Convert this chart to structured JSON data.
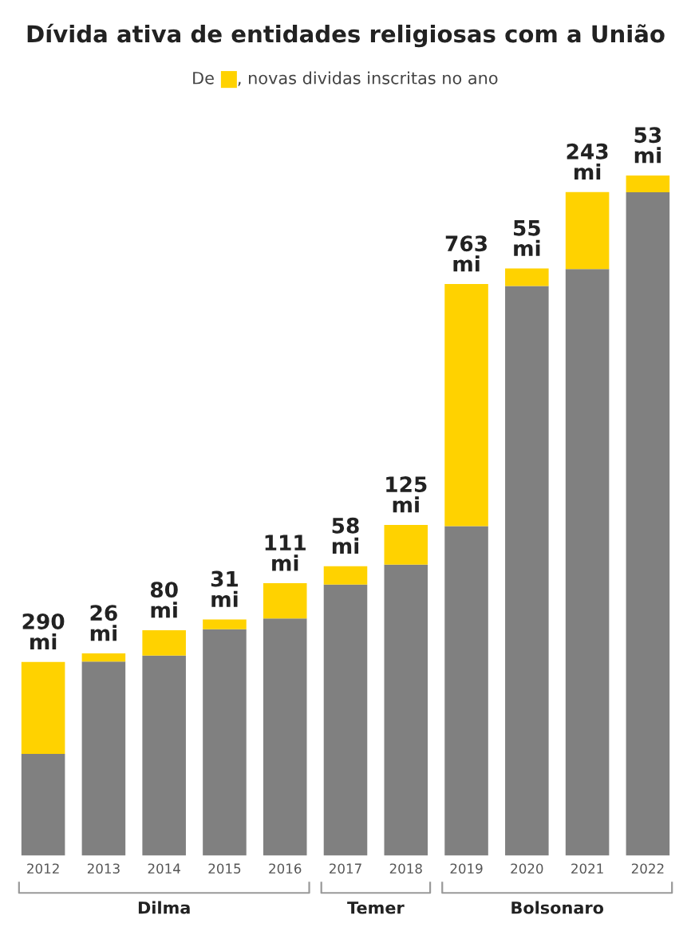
{
  "chart_data": {
    "type": "bar",
    "title": "Dívida ativa de entidades religiosas com a União",
    "subtitle": "De",
    "categories": [
      "2012",
      "2013",
      "2014",
      "2015",
      "2016",
      "2017",
      "2018",
      "2019",
      "2020",
      "2021",
      "2022"
    ],
    "stacked": true,
    "legend": "top",
    "series": [
      {
        "color": "#808080",
        "values": [
          320,
          611,
          630,
          713,
          747,
          854,
          917,
          1038,
          1795,
          1848,
          2090
        ]
      },
      {
        "name": ", novas dividas inscritas no ano",
        "color": "#ffd200",
        "values": [
          290,
          26,
          80,
          31,
          111,
          58,
          125,
          763,
          55,
          243,
          53
        ],
        "value_labels": [
          "290\nmi",
          "26\nmi",
          "80\nmi",
          "31\nmi",
          "111\nmi",
          "58\nmi",
          "125\nmi",
          "763\nmi",
          "55\nmi",
          "243\nmi",
          "53\nmi"
        ]
      }
    ],
    "annotations": [
      "Dilma",
      "Temer",
      "Bolsonaro"
    ]
  }
}
